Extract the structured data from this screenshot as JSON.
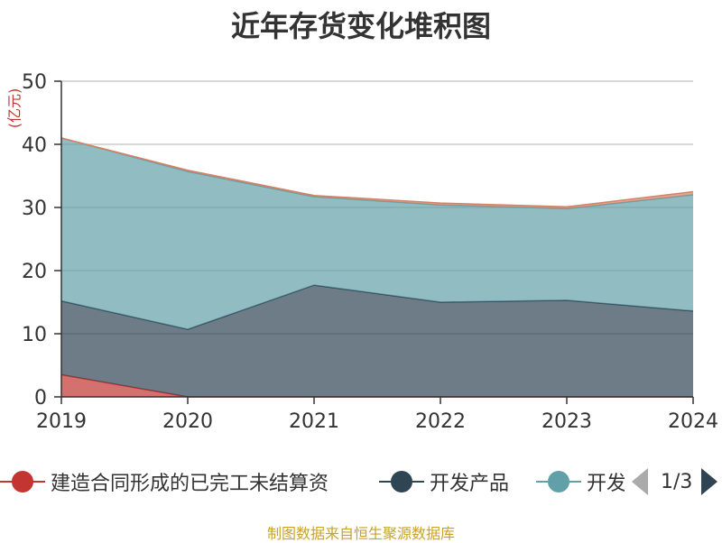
{
  "title": "近年存货变化堆积图",
  "unit_label": "(亿元)",
  "source_text": "制图数据来自恒生聚源数据库",
  "legend": {
    "items": [
      {
        "label": "建造合同形成的已完工未结算资",
        "color": "#c23531"
      },
      {
        "label": "开发产品",
        "color": "#2f4554"
      },
      {
        "label": "开发成本",
        "color": "#61a0a8"
      }
    ],
    "page_text": "1/3"
  },
  "chart_data": {
    "type": "area",
    "stacked": true,
    "title": "近年存货变化堆积图",
    "ylabel": "(亿元)",
    "x": [
      "2019",
      "2020",
      "2021",
      "2022",
      "2023",
      "2024"
    ],
    "y_ticks": [
      "0",
      "10",
      "20",
      "30",
      "40",
      "50"
    ],
    "ylim": [
      0,
      50
    ],
    "grid": true,
    "legend_position": "bottom",
    "series": [
      {
        "name": "建造合同形成的已完工未结算资",
        "color": "#c23531",
        "values": [
          3.5,
          0,
          0,
          0,
          0,
          0
        ]
      },
      {
        "name": "开发产品",
        "color": "#2f4554",
        "values": [
          11.7,
          10.7,
          17.7,
          15.0,
          15.3,
          13.6
        ]
      },
      {
        "name": "开发成本",
        "color": "#61a0a8",
        "values": [
          25.8,
          25.0,
          14.0,
          15.4,
          14.5,
          18.4
        ]
      },
      {
        "color": "#d48265",
        "values": [
          0,
          0.2,
          0.2,
          0.3,
          0.3,
          0.5
        ]
      }
    ]
  }
}
